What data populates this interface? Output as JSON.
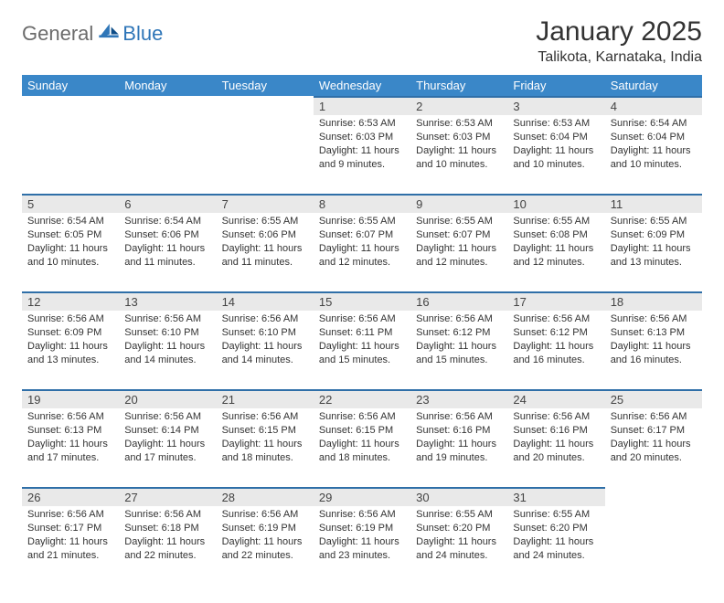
{
  "brand": {
    "part1": "General",
    "part2": "Blue"
  },
  "title": "January 2025",
  "location": "Talikota, Karnataka, India",
  "colors": {
    "header_bg": "#3a87c8",
    "header_text": "#ffffff",
    "day_bg": "#e9e9e9",
    "day_border": "#2f6fa8",
    "logo_gray": "#6b6b6b",
    "logo_blue": "#2f76b8"
  },
  "weekdays": [
    "Sunday",
    "Monday",
    "Tuesday",
    "Wednesday",
    "Thursday",
    "Friday",
    "Saturday"
  ],
  "weeks": [
    [
      null,
      null,
      null,
      {
        "n": "1",
        "sr": "6:53 AM",
        "ss": "6:03 PM",
        "dl": "11 hours and 9 minutes."
      },
      {
        "n": "2",
        "sr": "6:53 AM",
        "ss": "6:03 PM",
        "dl": "11 hours and 10 minutes."
      },
      {
        "n": "3",
        "sr": "6:53 AM",
        "ss": "6:04 PM",
        "dl": "11 hours and 10 minutes."
      },
      {
        "n": "4",
        "sr": "6:54 AM",
        "ss": "6:04 PM",
        "dl": "11 hours and 10 minutes."
      }
    ],
    [
      {
        "n": "5",
        "sr": "6:54 AM",
        "ss": "6:05 PM",
        "dl": "11 hours and 10 minutes."
      },
      {
        "n": "6",
        "sr": "6:54 AM",
        "ss": "6:06 PM",
        "dl": "11 hours and 11 minutes."
      },
      {
        "n": "7",
        "sr": "6:55 AM",
        "ss": "6:06 PM",
        "dl": "11 hours and 11 minutes."
      },
      {
        "n": "8",
        "sr": "6:55 AM",
        "ss": "6:07 PM",
        "dl": "11 hours and 12 minutes."
      },
      {
        "n": "9",
        "sr": "6:55 AM",
        "ss": "6:07 PM",
        "dl": "11 hours and 12 minutes."
      },
      {
        "n": "10",
        "sr": "6:55 AM",
        "ss": "6:08 PM",
        "dl": "11 hours and 12 minutes."
      },
      {
        "n": "11",
        "sr": "6:55 AM",
        "ss": "6:09 PM",
        "dl": "11 hours and 13 minutes."
      }
    ],
    [
      {
        "n": "12",
        "sr": "6:56 AM",
        "ss": "6:09 PM",
        "dl": "11 hours and 13 minutes."
      },
      {
        "n": "13",
        "sr": "6:56 AM",
        "ss": "6:10 PM",
        "dl": "11 hours and 14 minutes."
      },
      {
        "n": "14",
        "sr": "6:56 AM",
        "ss": "6:10 PM",
        "dl": "11 hours and 14 minutes."
      },
      {
        "n": "15",
        "sr": "6:56 AM",
        "ss": "6:11 PM",
        "dl": "11 hours and 15 minutes."
      },
      {
        "n": "16",
        "sr": "6:56 AM",
        "ss": "6:12 PM",
        "dl": "11 hours and 15 minutes."
      },
      {
        "n": "17",
        "sr": "6:56 AM",
        "ss": "6:12 PM",
        "dl": "11 hours and 16 minutes."
      },
      {
        "n": "18",
        "sr": "6:56 AM",
        "ss": "6:13 PM",
        "dl": "11 hours and 16 minutes."
      }
    ],
    [
      {
        "n": "19",
        "sr": "6:56 AM",
        "ss": "6:13 PM",
        "dl": "11 hours and 17 minutes."
      },
      {
        "n": "20",
        "sr": "6:56 AM",
        "ss": "6:14 PM",
        "dl": "11 hours and 17 minutes."
      },
      {
        "n": "21",
        "sr": "6:56 AM",
        "ss": "6:15 PM",
        "dl": "11 hours and 18 minutes."
      },
      {
        "n": "22",
        "sr": "6:56 AM",
        "ss": "6:15 PM",
        "dl": "11 hours and 18 minutes."
      },
      {
        "n": "23",
        "sr": "6:56 AM",
        "ss": "6:16 PM",
        "dl": "11 hours and 19 minutes."
      },
      {
        "n": "24",
        "sr": "6:56 AM",
        "ss": "6:16 PM",
        "dl": "11 hours and 20 minutes."
      },
      {
        "n": "25",
        "sr": "6:56 AM",
        "ss": "6:17 PM",
        "dl": "11 hours and 20 minutes."
      }
    ],
    [
      {
        "n": "26",
        "sr": "6:56 AM",
        "ss": "6:17 PM",
        "dl": "11 hours and 21 minutes."
      },
      {
        "n": "27",
        "sr": "6:56 AM",
        "ss": "6:18 PM",
        "dl": "11 hours and 22 minutes."
      },
      {
        "n": "28",
        "sr": "6:56 AM",
        "ss": "6:19 PM",
        "dl": "11 hours and 22 minutes."
      },
      {
        "n": "29",
        "sr": "6:56 AM",
        "ss": "6:19 PM",
        "dl": "11 hours and 23 minutes."
      },
      {
        "n": "30",
        "sr": "6:55 AM",
        "ss": "6:20 PM",
        "dl": "11 hours and 24 minutes."
      },
      {
        "n": "31",
        "sr": "6:55 AM",
        "ss": "6:20 PM",
        "dl": "11 hours and 24 minutes."
      },
      null
    ]
  ],
  "labels": {
    "sunrise": "Sunrise:",
    "sunset": "Sunset:",
    "daylight": "Daylight:"
  }
}
